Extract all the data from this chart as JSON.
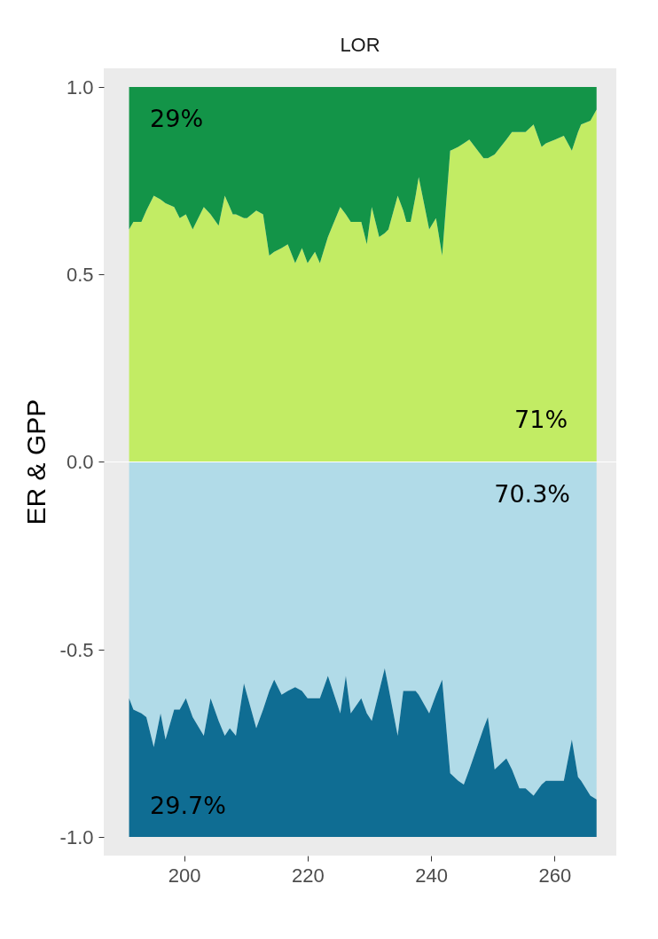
{
  "chart_data": [
    {
      "type": "area",
      "title": "LOR",
      "ylabel": "ER & GPP",
      "stacked": true,
      "tick_labels": "y",
      "xlim": [
        187,
        270
      ],
      "ylim": [
        0,
        1.05
      ],
      "yticks": [
        {
          "value": 0,
          "label": "0.0"
        },
        {
          "value": 0.5,
          "label": "0.5"
        },
        {
          "value": 1,
          "label": "1.0"
        }
      ],
      "x": [
        191.1,
        191.8,
        193.1,
        193.9,
        195.1,
        196.2,
        197.0,
        198.4,
        199.3,
        200.3,
        201.4,
        203.2,
        204.3,
        205.6,
        206.6,
        207.4,
        207.9,
        208.4,
        209.7,
        210.2,
        211.7,
        212.8,
        213.8,
        214.6,
        215.8,
        216.8,
        218.0,
        219.1,
        220.0,
        221.2,
        222.0,
        223.3,
        225.3,
        226.2,
        227.0,
        228.7,
        229.6,
        230.4,
        231.6,
        232.5,
        233.1,
        234.6,
        235.5,
        236.0,
        236.7,
        237.5,
        238.0,
        239.7,
        240.8,
        241.8,
        243.1,
        244.4,
        245.3,
        246.2,
        248.5,
        249.2,
        250.3,
        252.2,
        253.1,
        254.3,
        255.3,
        256.6,
        257.9,
        258.6,
        260.1,
        261.5,
        262.8,
        263.8,
        264.3,
        265.8,
        266.8
      ],
      "series": [
        {
          "color": "#c2ec64",
          "values": [
            0.62,
            0.64,
            0.64,
            0.67,
            0.71,
            0.7,
            0.69,
            0.68,
            0.65,
            0.66,
            0.62,
            0.68,
            0.66,
            0.63,
            0.71,
            0.68,
            0.66,
            0.66,
            0.65,
            0.65,
            0.67,
            0.66,
            0.55,
            0.56,
            0.57,
            0.58,
            0.53,
            0.57,
            0.53,
            0.56,
            0.53,
            0.6,
            0.68,
            0.66,
            0.64,
            0.64,
            0.58,
            0.68,
            0.6,
            0.61,
            0.62,
            0.71,
            0.67,
            0.64,
            0.64,
            0.71,
            0.76,
            0.62,
            0.65,
            0.55,
            0.83,
            0.84,
            0.85,
            0.86,
            0.81,
            0.81,
            0.82,
            0.86,
            0.88,
            0.88,
            0.88,
            0.9,
            0.84,
            0.85,
            0.86,
            0.87,
            0.83,
            0.88,
            0.9,
            0.91,
            0.94
          ]
        },
        {
          "color": "#139448",
          "values": [
            0.38,
            0.36,
            0.36,
            0.33,
            0.29,
            0.3,
            0.31,
            0.32,
            0.35,
            0.34,
            0.38,
            0.32,
            0.34,
            0.37,
            0.29,
            0.32,
            0.34,
            0.34,
            0.35,
            0.35,
            0.33,
            0.34,
            0.45,
            0.44,
            0.43,
            0.42,
            0.47,
            0.43,
            0.47,
            0.44,
            0.47,
            0.4,
            0.32,
            0.34,
            0.36,
            0.36,
            0.42,
            0.32,
            0.4,
            0.39,
            0.38,
            0.29,
            0.33,
            0.36,
            0.36,
            0.29,
            0.24,
            0.38,
            0.35,
            0.45,
            0.17,
            0.16,
            0.15,
            0.14,
            0.19,
            0.19,
            0.18,
            0.14,
            0.12,
            0.12,
            0.12,
            0.1,
            0.16,
            0.15,
            0.14,
            0.13,
            0.17,
            0.12,
            0.1,
            0.09,
            0.06
          ]
        }
      ],
      "annotations": [
        "29%",
        "71%"
      ]
    },
    {
      "type": "area",
      "stacked": true,
      "xlim": [
        187,
        270
      ],
      "xticks": [
        200,
        220,
        240,
        260
      ],
      "ylim": [
        -1.05,
        0
      ],
      "yticks": [
        {
          "value": -1,
          "label": "-1.0"
        },
        {
          "value": -0.5,
          "label": "-0.5"
        }
      ],
      "x": [
        191.1,
        191.8,
        193.1,
        193.9,
        195.1,
        196.2,
        197.0,
        198.4,
        199.3,
        200.3,
        201.4,
        203.2,
        204.3,
        205.6,
        206.6,
        207.4,
        207.9,
        208.4,
        209.7,
        210.2,
        211.7,
        212.8,
        213.8,
        214.6,
        215.8,
        216.8,
        218.0,
        219.1,
        220.0,
        221.2,
        222.0,
        223.3,
        225.3,
        226.2,
        227.0,
        228.7,
        229.6,
        230.4,
        231.6,
        232.5,
        233.1,
        234.6,
        235.5,
        236.0,
        236.7,
        237.5,
        238.0,
        239.7,
        240.8,
        241.8,
        243.1,
        244.4,
        245.3,
        246.2,
        248.5,
        249.2,
        250.3,
        252.2,
        253.1,
        254.3,
        255.3,
        256.6,
        257.9,
        258.6,
        260.1,
        261.5,
        262.8,
        263.8,
        264.3,
        265.8,
        266.8
      ],
      "series": [
        {
          "color": "#b1dbe8",
          "values": [
            -0.63,
            -0.66,
            -0.67,
            -0.68,
            -0.76,
            -0.67,
            -0.74,
            -0.66,
            -0.66,
            -0.63,
            -0.68,
            -0.73,
            -0.63,
            -0.69,
            -0.73,
            -0.71,
            -0.72,
            -0.73,
            -0.59,
            -0.62,
            -0.71,
            -0.66,
            -0.61,
            -0.58,
            -0.62,
            -0.61,
            -0.6,
            -0.61,
            -0.63,
            -0.63,
            -0.63,
            -0.57,
            -0.67,
            -0.57,
            -0.67,
            -0.63,
            -0.67,
            -0.69,
            -0.61,
            -0.55,
            -0.6,
            -0.73,
            -0.61,
            -0.61,
            -0.61,
            -0.61,
            -0.62,
            -0.67,
            -0.62,
            -0.58,
            -0.83,
            -0.85,
            -0.86,
            -0.82,
            -0.71,
            -0.68,
            -0.82,
            -0.79,
            -0.82,
            -0.87,
            -0.87,
            -0.89,
            -0.86,
            -0.85,
            -0.85,
            -0.85,
            -0.74,
            -0.84,
            -0.85,
            -0.89,
            -0.9
          ]
        },
        {
          "color": "#0f6d93",
          "values": [
            -0.37,
            -0.34,
            -0.33,
            -0.32,
            -0.24,
            -0.33,
            -0.26,
            -0.34,
            -0.34,
            -0.37,
            -0.32,
            -0.27,
            -0.37,
            -0.31,
            -0.27,
            -0.29,
            -0.28,
            -0.27,
            -0.41,
            -0.38,
            -0.29,
            -0.34,
            -0.39,
            -0.42,
            -0.38,
            -0.39,
            -0.4,
            -0.39,
            -0.37,
            -0.37,
            -0.37,
            -0.43,
            -0.33,
            -0.43,
            -0.33,
            -0.37,
            -0.33,
            -0.31,
            -0.39,
            -0.45,
            -0.4,
            -0.27,
            -0.39,
            -0.39,
            -0.39,
            -0.39,
            -0.38,
            -0.33,
            -0.38,
            -0.42,
            -0.17,
            -0.15,
            -0.14,
            -0.18,
            -0.29,
            -0.32,
            -0.18,
            -0.21,
            -0.18,
            -0.13,
            -0.13,
            -0.11,
            -0.14,
            -0.15,
            -0.15,
            -0.15,
            -0.26,
            -0.16,
            -0.15,
            -0.11,
            -0.1
          ]
        }
      ],
      "annotations": [
        "70.3%",
        "29.7%"
      ]
    }
  ]
}
